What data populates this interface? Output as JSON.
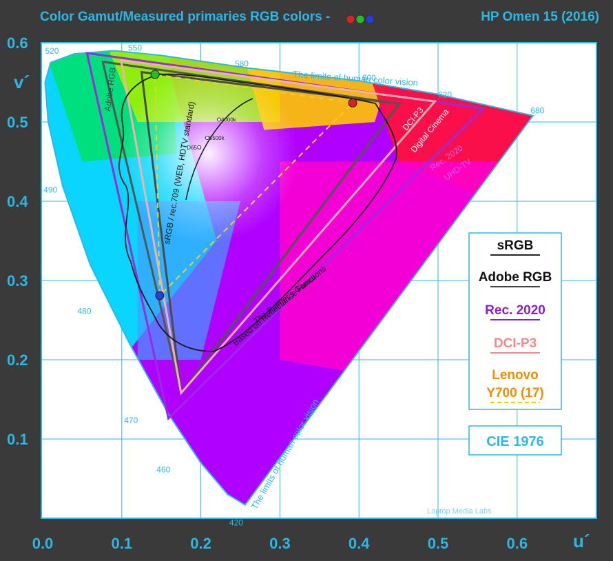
{
  "header": {
    "title": "Color Gamut/Measured primaries RGB colors -",
    "model": "HP Omen 15 (2016)"
  },
  "chart_data": {
    "type": "scatter",
    "title": "Color Gamut/Measured primaries RGB colors -",
    "xlabel": "u´",
    "ylabel": "v´",
    "xlim": [
      0.0,
      0.7
    ],
    "ylim": [
      0.0,
      0.6
    ],
    "x_ticks": [
      "0.0",
      "0.1",
      "0.2",
      "0.3",
      "0.4",
      "0.5",
      "0.6"
    ],
    "y_ticks": [
      "0.6",
      "0.5",
      "0.4",
      "0.3",
      "0.2",
      "0.1"
    ],
    "grid": true,
    "measured_primaries": [
      {
        "name": "red",
        "u": 0.392,
        "v": 0.524,
        "color": "#e02020"
      },
      {
        "name": "green",
        "u": 0.142,
        "v": 0.56,
        "color": "#20c020"
      },
      {
        "name": "blue",
        "u": 0.148,
        "v": 0.281,
        "color": "#2040e0"
      }
    ],
    "gamuts": [
      {
        "name": "sRGB / rec.709 (WEB, HDTV standard)",
        "color": "#4a4a4a",
        "points": [
          [
            0.451,
            0.523
          ],
          [
            0.125,
            0.563
          ],
          [
            0.175,
            0.158
          ]
        ]
      },
      {
        "name": "Adobe RGB",
        "color": "#555555",
        "points": [
          [
            0.451,
            0.523
          ],
          [
            0.076,
            0.576
          ],
          [
            0.175,
            0.158
          ]
        ]
      },
      {
        "name": "Rec. 2020",
        "color": "#9a2ae0",
        "points": [
          [
            0.557,
            0.517
          ],
          [
            0.056,
            0.587
          ],
          [
            0.159,
            0.126
          ]
        ]
      },
      {
        "name": "DCI-P3",
        "color": "#f0b0b0",
        "points": [
          [
            0.496,
            0.526
          ],
          [
            0.099,
            0.578
          ],
          [
            0.175,
            0.158
          ]
        ]
      },
      {
        "name": "Lenovo Y700 (17)",
        "color": "#f0d020",
        "points": [
          [
            0.392,
            0.524
          ],
          [
            0.142,
            0.56
          ],
          [
            0.148,
            0.281
          ]
        ],
        "dashed": true
      }
    ],
    "locus_wavelengths": [
      {
        "label": "520",
        "u": 0.003,
        "v": 0.586
      },
      {
        "label": "550",
        "u": 0.108,
        "v": 0.59
      },
      {
        "label": "580",
        "u": 0.243,
        "v": 0.57
      },
      {
        "label": "600",
        "u": 0.404,
        "v": 0.552
      },
      {
        "label": "620",
        "u": 0.5,
        "v": 0.531
      },
      {
        "label": "680",
        "u": 0.617,
        "v": 0.511
      },
      {
        "label": "490",
        "u": 0.001,
        "v": 0.411
      },
      {
        "label": "480",
        "u": 0.044,
        "v": 0.258
      },
      {
        "label": "470",
        "u": 0.103,
        "v": 0.12
      },
      {
        "label": "460",
        "u": 0.144,
        "v": 0.058
      },
      {
        "label": "420",
        "u": 0.236,
        "v": -0.009
      }
    ],
    "planckian_points": [
      {
        "label": "4000k",
        "u": 0.223,
        "v": 0.503
      },
      {
        "label": "5500k",
        "u": 0.208,
        "v": 0.48
      },
      {
        "label": "D65",
        "u": 0.198,
        "v": 0.468
      }
    ],
    "annotations": [
      "The limits of human color vision",
      "The limits of human color vision",
      "Adobe RGB",
      "sRGB / rec.709 (WEB, HDTV standard)",
      "DCI-P3",
      "Digital Cinema",
      "Rec. 2020",
      "UHD-TV",
      "The Pointer's Gamut",
      "Based on Reflectance Functions",
      "Laptop Media Labs"
    ]
  },
  "legend": {
    "items": [
      {
        "label": "sRGB",
        "color": "#111111",
        "underline": "#222222"
      },
      {
        "label": "Adobe RGB",
        "color": "#111111",
        "underline": "#444444"
      },
      {
        "label": "Rec. 2020",
        "color": "#8a1ed8",
        "underline": "#8a1ed8"
      },
      {
        "label": "DCI-P3",
        "color": "#f08a8a",
        "underline": "#f08a8a"
      },
      {
        "label": "Lenovo",
        "color": "#f08c00",
        "underline": ""
      },
      {
        "label": "Y700 (17)",
        "color": "#f08c00",
        "underline": "#f0c800"
      }
    ],
    "cie_label": "CIE 1976"
  }
}
